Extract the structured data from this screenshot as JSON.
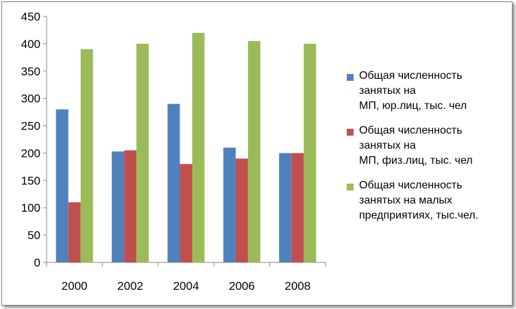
{
  "chart_data": {
    "type": "bar",
    "categories": [
      "2000",
      "2002",
      "2004",
      "2006",
      "2008"
    ],
    "series": [
      {
        "name": "Общая численность\nзанятых на\nМП, юр.лиц, тыс. чел",
        "color": "#4f81bd",
        "values": [
          280,
          203,
          290,
          210,
          200
        ]
      },
      {
        "name": "Общая численность\nзанятых на\nМП, физ.лиц, тыс. чел",
        "color": "#c0504d",
        "values": [
          110,
          205,
          180,
          190,
          200
        ]
      },
      {
        "name": "Общая численность\nзанятых на малых\nпредприятиях, тыс.чел.",
        "color": "#9bbb59",
        "values": [
          390,
          400,
          420,
          405,
          400
        ]
      }
    ],
    "yticks": [
      "0",
      "50",
      "100",
      "150",
      "200",
      "250",
      "300",
      "350",
      "400",
      "450"
    ],
    "ylim": [
      0,
      450
    ],
    "grid": false,
    "legend_position": "right"
  }
}
